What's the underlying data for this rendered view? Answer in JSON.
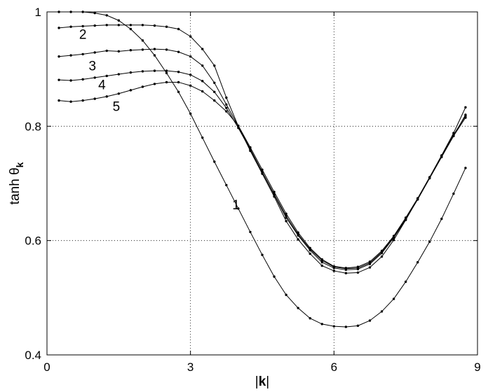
{
  "chart_data": {
    "type": "line",
    "xlabel_prefix": "|",
    "xlabel_bold": "k",
    "xlabel_suffix": "|",
    "ylabel_main": "tanh θ",
    "ylabel_sub": "k",
    "xlim": [
      0,
      9
    ],
    "ylim": [
      0.4,
      1.0
    ],
    "xticks": [
      "0",
      "3",
      "6",
      "9"
    ],
    "yticks": [
      "0.4",
      "0.6",
      "0.8",
      "1"
    ],
    "xtick_values": [
      0,
      3,
      6,
      9
    ],
    "ytick_values": [
      0.4,
      0.6,
      0.8,
      1.0
    ],
    "grid": true,
    "line_color": "#000000",
    "series": [
      {
        "label": "1",
        "label_at": [
          3.95,
          0.655
        ],
        "x": [
          0.25,
          0.5,
          0.75,
          1.0,
          1.25,
          1.5,
          1.75,
          2.0,
          2.25,
          2.5,
          2.75,
          3.0,
          3.25,
          3.5,
          3.75,
          4.0,
          4.25,
          4.5,
          4.75,
          5.0,
          5.25,
          5.5,
          5.75,
          6.0,
          6.25,
          6.5,
          6.75,
          7.0,
          7.25,
          7.5,
          7.75,
          8.0,
          8.25,
          8.5,
          8.75
        ],
        "y": [
          1.0,
          1.0,
          1.0,
          0.998,
          0.994,
          0.985,
          0.97,
          0.95,
          0.924,
          0.893,
          0.86,
          0.822,
          0.78,
          0.738,
          0.697,
          0.656,
          0.615,
          0.575,
          0.537,
          0.505,
          0.482,
          0.464,
          0.454,
          0.45,
          0.449,
          0.451,
          0.46,
          0.476,
          0.498,
          0.528,
          0.562,
          0.598,
          0.638,
          0.682,
          0.727
        ]
      },
      {
        "label": "2",
        "label_at": [
          0.75,
          0.953
        ],
        "x": [
          0.25,
          0.5,
          0.75,
          1.0,
          1.25,
          1.5,
          1.75,
          2.0,
          2.25,
          2.5,
          2.75,
          3.0,
          3.25,
          3.5,
          3.75,
          4.0,
          4.25,
          4.5,
          4.75,
          5.0,
          5.25,
          5.5,
          5.75,
          6.0,
          6.25,
          6.5,
          6.75,
          7.0,
          7.25,
          7.5,
          7.75,
          8.0,
          8.25,
          8.5,
          8.75
        ],
        "y": [
          0.972,
          0.974,
          0.975,
          0.976,
          0.977,
          0.977,
          0.977,
          0.977,
          0.976,
          0.974,
          0.97,
          0.957,
          0.935,
          0.906,
          0.85,
          0.8,
          0.757,
          0.717,
          0.677,
          0.634,
          0.602,
          0.577,
          0.556,
          0.547,
          0.543,
          0.544,
          0.553,
          0.572,
          0.601,
          0.636,
          0.673,
          0.71,
          0.748,
          0.785,
          0.818
        ]
      },
      {
        "label": "3",
        "label_at": [
          0.95,
          0.898
        ],
        "x": [
          0.25,
          0.5,
          0.75,
          1.0,
          1.25,
          1.5,
          1.75,
          2.0,
          2.25,
          2.5,
          2.75,
          3.0,
          3.25,
          3.5,
          3.75,
          4.0,
          4.25,
          4.5,
          4.75,
          5.0,
          5.25,
          5.5,
          5.75,
          6.0,
          6.25,
          6.5,
          6.75,
          7.0,
          7.25,
          7.5,
          7.75,
          8.0,
          8.25,
          8.5,
          8.75
        ],
        "y": [
          0.922,
          0.924,
          0.926,
          0.929,
          0.932,
          0.931,
          0.933,
          0.934,
          0.935,
          0.934,
          0.93,
          0.922,
          0.906,
          0.876,
          0.838,
          0.8,
          0.76,
          0.72,
          0.68,
          0.64,
          0.609,
          0.583,
          0.562,
          0.552,
          0.549,
          0.55,
          0.559,
          0.578,
          0.605,
          0.637,
          0.672,
          0.71,
          0.747,
          0.783,
          0.815
        ]
      },
      {
        "label": "4",
        "label_at": [
          1.15,
          0.865
        ],
        "x": [
          0.25,
          0.5,
          0.75,
          1.0,
          1.25,
          1.5,
          1.75,
          2.0,
          2.25,
          2.5,
          2.75,
          3.0,
          3.25,
          3.5,
          3.75,
          4.0,
          4.25,
          4.5,
          4.75,
          5.0,
          5.25,
          5.5,
          5.75,
          6.0,
          6.25,
          6.5,
          6.75,
          7.0,
          7.25,
          7.5,
          7.75,
          8.0,
          8.25,
          8.5,
          8.75
        ],
        "y": [
          0.881,
          0.88,
          0.882,
          0.885,
          0.888,
          0.891,
          0.894,
          0.896,
          0.897,
          0.897,
          0.895,
          0.89,
          0.879,
          0.86,
          0.832,
          0.797,
          0.759,
          0.72,
          0.681,
          0.643,
          0.611,
          0.585,
          0.565,
          0.554,
          0.551,
          0.552,
          0.561,
          0.58,
          0.607,
          0.638,
          0.672,
          0.709,
          0.746,
          0.783,
          0.82
        ]
      },
      {
        "label": "5",
        "label_at": [
          1.45,
          0.827
        ],
        "x": [
          0.25,
          0.5,
          0.75,
          1.0,
          1.25,
          1.5,
          1.75,
          2.0,
          2.25,
          2.5,
          2.75,
          3.0,
          3.25,
          3.5,
          3.75,
          4.0,
          4.25,
          4.5,
          4.75,
          5.0,
          5.25,
          5.5,
          5.75,
          6.0,
          6.25,
          6.5,
          6.75,
          7.0,
          7.25,
          7.5,
          7.75,
          8.0,
          8.25,
          8.5,
          8.75
        ],
        "y": [
          0.845,
          0.843,
          0.845,
          0.848,
          0.852,
          0.857,
          0.863,
          0.869,
          0.874,
          0.877,
          0.877,
          0.871,
          0.861,
          0.845,
          0.826,
          0.801,
          0.763,
          0.724,
          0.685,
          0.647,
          0.614,
          0.587,
          0.567,
          0.555,
          0.552,
          0.554,
          0.563,
          0.582,
          0.608,
          0.64,
          0.674,
          0.711,
          0.749,
          0.788,
          0.833
        ]
      }
    ]
  }
}
